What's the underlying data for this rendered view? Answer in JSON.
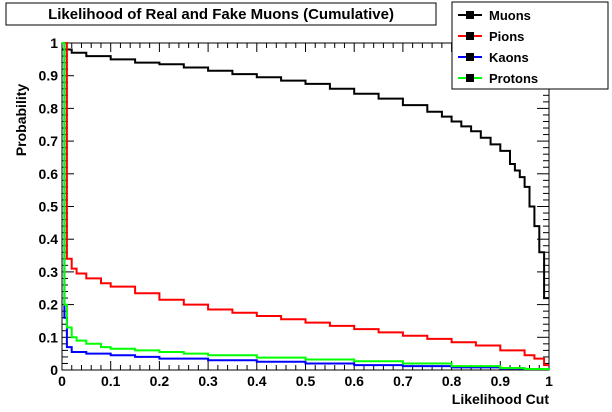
{
  "chart_data": {
    "type": "line",
    "step": true,
    "title": "Likelihood of Real and Fake Muons (Cumulative)",
    "xlabel": "Likelihood Cut",
    "ylabel": "Probability",
    "xlim": [
      0,
      1
    ],
    "ylim": [
      0,
      1
    ],
    "x_ticks": [
      "0",
      "0.1",
      "0.2",
      "0.3",
      "0.4",
      "0.5",
      "0.6",
      "0.7",
      "0.8",
      "0.9",
      "1"
    ],
    "y_ticks": [
      "0",
      "0.1",
      "0.2",
      "0.3",
      "0.4",
      "0.5",
      "0.6",
      "0.7",
      "0.8",
      "0.9",
      "1"
    ],
    "grid": false,
    "legend_position": "top-right",
    "series": [
      {
        "name": "Muons",
        "color": "#000000",
        "x": [
          0,
          0.02,
          0.05,
          0.1,
          0.15,
          0.2,
          0.25,
          0.3,
          0.35,
          0.4,
          0.45,
          0.5,
          0.55,
          0.6,
          0.65,
          0.7,
          0.75,
          0.78,
          0.8,
          0.82,
          0.84,
          0.86,
          0.88,
          0.9,
          0.92,
          0.93,
          0.94,
          0.95,
          0.96,
          0.97,
          0.98,
          0.99,
          1.0
        ],
        "y": [
          0.98,
          0.97,
          0.96,
          0.95,
          0.94,
          0.935,
          0.925,
          0.915,
          0.905,
          0.895,
          0.885,
          0.875,
          0.86,
          0.845,
          0.83,
          0.81,
          0.79,
          0.775,
          0.76,
          0.745,
          0.73,
          0.71,
          0.69,
          0.67,
          0.63,
          0.61,
          0.59,
          0.56,
          0.5,
          0.44,
          0.36,
          0.22,
          0.22
        ]
      },
      {
        "name": "Pions",
        "color": "#ff0000",
        "x": [
          0,
          0.01,
          0.02,
          0.03,
          0.05,
          0.08,
          0.1,
          0.15,
          0.2,
          0.25,
          0.3,
          0.35,
          0.4,
          0.45,
          0.5,
          0.55,
          0.6,
          0.65,
          0.7,
          0.75,
          0.8,
          0.85,
          0.9,
          0.95,
          0.97,
          0.99,
          1.0
        ],
        "y": [
          1.0,
          0.34,
          0.31,
          0.295,
          0.28,
          0.265,
          0.255,
          0.235,
          0.215,
          0.2,
          0.185,
          0.175,
          0.165,
          0.155,
          0.145,
          0.135,
          0.125,
          0.115,
          0.105,
          0.095,
          0.085,
          0.075,
          0.06,
          0.045,
          0.035,
          0.015,
          0.015
        ]
      },
      {
        "name": "Kaons",
        "color": "#0000ff",
        "x": [
          0,
          0.005,
          0.01,
          0.02,
          0.05,
          0.1,
          0.15,
          0.2,
          0.3,
          0.4,
          0.5,
          0.6,
          0.7,
          0.8,
          0.9,
          0.95,
          1.0
        ],
        "y": [
          1.0,
          0.16,
          0.07,
          0.055,
          0.05,
          0.045,
          0.04,
          0.035,
          0.03,
          0.025,
          0.02,
          0.015,
          0.012,
          0.008,
          0.005,
          0.003,
          0.0
        ]
      },
      {
        "name": "Protons",
        "color": "#00ff00",
        "x": [
          0,
          0.005,
          0.01,
          0.02,
          0.03,
          0.05,
          0.08,
          0.1,
          0.15,
          0.2,
          0.25,
          0.3,
          0.4,
          0.5,
          0.6,
          0.7,
          0.8,
          0.9,
          0.95,
          1.0
        ],
        "y": [
          1.0,
          0.2,
          0.13,
          0.1,
          0.09,
          0.08,
          0.07,
          0.065,
          0.06,
          0.055,
          0.05,
          0.045,
          0.038,
          0.032,
          0.027,
          0.02,
          0.012,
          0.006,
          0.003,
          0.0
        ]
      }
    ]
  }
}
